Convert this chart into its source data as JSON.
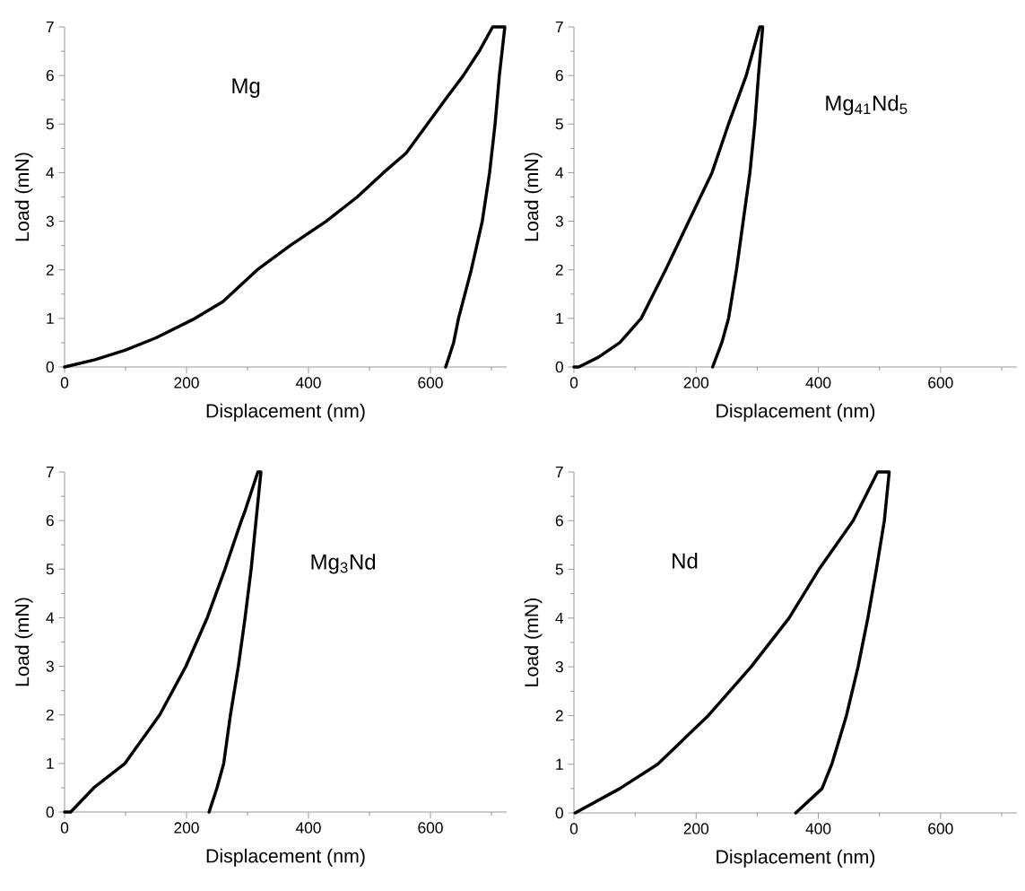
{
  "chart_data": [
    {
      "type": "line",
      "xlabel": "Displacement (nm)",
      "ylabel": "Load (mN)",
      "annotations": [
        "Mg"
      ],
      "xlim": [
        0,
        725
      ],
      "ylim": [
        0,
        7
      ],
      "xticks": [
        0,
        {
          "value": 100,
          "label": null
        },
        200,
        {
          "value": 300,
          "label": null
        },
        400,
        {
          "value": 500,
          "label": null
        },
        600,
        {
          "value": 700,
          "label": null
        }
      ],
      "yticks": [
        0,
        {
          "value": 0.5,
          "label": null
        },
        1,
        {
          "value": 1.5,
          "label": null
        },
        2,
        {
          "value": 2.5,
          "label": null
        },
        3,
        {
          "value": 3.5,
          "label": null
        },
        4,
        {
          "value": 4.5,
          "label": null
        },
        5,
        {
          "value": 5.5,
          "label": null
        },
        6,
        {
          "value": 6.5,
          "label": null
        },
        7
      ],
      "series": [
        {
          "color": "#000000",
          "x": [
            0,
            50,
            100,
            150,
            214,
            260,
            316,
            370,
            429,
            480,
            523,
            560,
            595,
            630,
            654,
            680,
            702,
            722,
            713,
            706,
            697,
            685,
            667,
            646,
            638,
            625
          ],
          "values": [
            0,
            0.15,
            0.35,
            0.6,
            1,
            1.35,
            2,
            2.5,
            3,
            3.5,
            4,
            4.4,
            5,
            5.6,
            6,
            6.5,
            7,
            7,
            6,
            5,
            4,
            3,
            2,
            1,
            0.5,
            0
          ]
        }
      ]
    },
    {
      "type": "line",
      "xlabel": "Displacement (nm)",
      "ylabel": "Load (mN)",
      "annotations": [
        "Mg$_{41}$Nd$_{5}$"
      ],
      "xlim": [
        0,
        725
      ],
      "ylim": [
        0,
        7
      ],
      "xticks": [
        0,
        {
          "value": 100,
          "label": null
        },
        200,
        {
          "value": 300,
          "label": null
        },
        400,
        {
          "value": 500,
          "label": null
        },
        600,
        {
          "value": 700,
          "label": null
        }
      ],
      "yticks": [
        0,
        {
          "value": 0.5,
          "label": null
        },
        1,
        {
          "value": 1.5,
          "label": null
        },
        2,
        {
          "value": 2.5,
          "label": null
        },
        3,
        {
          "value": 3.5,
          "label": null
        },
        4,
        {
          "value": 4.5,
          "label": null
        },
        5,
        {
          "value": 5.5,
          "label": null
        },
        6,
        {
          "value": 6.5,
          "label": null
        },
        7
      ],
      "series": [
        {
          "color": "#000000",
          "x": [
            0,
            8,
            40,
            75,
            110,
            150,
            188,
            226,
            253,
            282,
            304,
            309,
            302,
            296,
            288,
            277,
            266,
            253,
            242,
            227
          ],
          "values": [
            0,
            0,
            0.2,
            0.5,
            1,
            2,
            3,
            4,
            5,
            6,
            7,
            7,
            6,
            5,
            4,
            3,
            2,
            1,
            0.5,
            0
          ]
        }
      ]
    },
    {
      "type": "line",
      "xlabel": "Displacement (nm)",
      "ylabel": "Load (mN)",
      "annotations": [
        "Mg$_{3}$Nd"
      ],
      "xlim": [
        0,
        725
      ],
      "ylim": [
        0,
        7
      ],
      "xticks": [
        0,
        {
          "value": 100,
          "label": null
        },
        200,
        {
          "value": 300,
          "label": null
        },
        400,
        {
          "value": 500,
          "label": null
        },
        600,
        {
          "value": 700,
          "label": null
        }
      ],
      "yticks": [
        0,
        {
          "value": 0.5,
          "label": null
        },
        1,
        {
          "value": 1.5,
          "label": null
        },
        2,
        {
          "value": 2.5,
          "label": null
        },
        3,
        {
          "value": 3.5,
          "label": null
        },
        4,
        {
          "value": 4.5,
          "label": null
        },
        5,
        {
          "value": 5.5,
          "label": null
        },
        6,
        {
          "value": 6.5,
          "label": null
        },
        7
      ],
      "series": [
        {
          "color": "#000000",
          "x": [
            0,
            10,
            48,
            99,
            156,
            199,
            234,
            263,
            290,
            296,
            317,
            322,
            314,
            306,
            296,
            285,
            272,
            261,
            250,
            237
          ],
          "values": [
            0,
            0,
            0.5,
            1,
            2,
            3,
            4,
            5,
            6,
            6.2,
            7,
            7,
            6,
            5,
            4,
            3,
            2,
            1,
            0.5,
            0
          ]
        }
      ]
    },
    {
      "type": "line",
      "xlabel": "Displacement (nm)",
      "ylabel": "Load (mN)",
      "annotations": [
        "Nd"
      ],
      "xlim": [
        0,
        725
      ],
      "ylim": [
        0,
        7
      ],
      "xticks": [
        0,
        {
          "value": 100,
          "label": null
        },
        200,
        {
          "value": 300,
          "label": null
        },
        400,
        {
          "value": 500,
          "label": null
        },
        600,
        {
          "value": 700,
          "label": null
        }
      ],
      "yticks": [
        0,
        {
          "value": 0.5,
          "label": null
        },
        1,
        {
          "value": 1.5,
          "label": null
        },
        2,
        {
          "value": 2.5,
          "label": null
        },
        3,
        {
          "value": 3.5,
          "label": null
        },
        4,
        {
          "value": 4.5,
          "label": null
        },
        5,
        {
          "value": 5.5,
          "label": null
        },
        6,
        {
          "value": 6.5,
          "label": null
        },
        7
      ],
      "series": [
        {
          "color": "#000000",
          "x": [
            2,
            75,
            137,
            220,
            290,
            352,
            401,
            457,
            497,
            516,
            508,
            495,
            481,
            465,
            446,
            422,
            406,
            363
          ],
          "values": [
            0,
            0.5,
            1,
            2,
            3,
            4,
            5,
            6,
            7,
            7,
            6,
            5,
            4,
            3,
            2,
            1,
            0.5,
            0
          ]
        }
      ]
    }
  ]
}
